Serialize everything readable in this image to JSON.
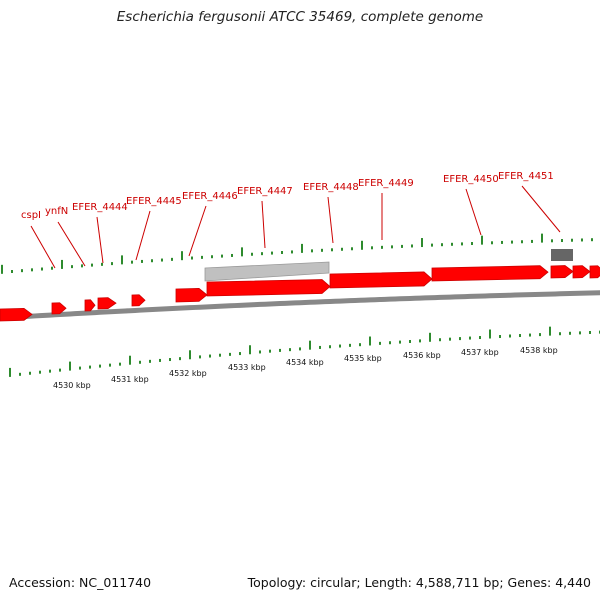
{
  "title": "Escherichia fergusonii ATCC 35469, complete genome",
  "colors": {
    "gene_forward": "#ff0000",
    "gene_shade": "#cc0000",
    "pseudo_gene": "#c0c0c0",
    "rna_feature": "#666666",
    "backbone": "#888888",
    "tick": "#2e8b2e",
    "label": "#cc0000",
    "scale_text": "#111111"
  },
  "gene_labels": [
    "cspI",
    "ynfN",
    "EFER_4444",
    "EFER_4445",
    "EFER_4446",
    "EFER_4447",
    "EFER_4448",
    "EFER_4449",
    "EFER_4450",
    "EFER_4451"
  ],
  "scale_labels": [
    "4530 kbp",
    "4531 kbp",
    "4532 kbp",
    "4533 kbp",
    "4534 kbp",
    "4535 kbp",
    "4536 kbp",
    "4537 kbp",
    "4538 kbp"
  ],
  "footer": {
    "accession": "Accession: NC_011740",
    "stats": "Topology: circular; Length: 4,588,711 bp; Genes: 4,440"
  }
}
